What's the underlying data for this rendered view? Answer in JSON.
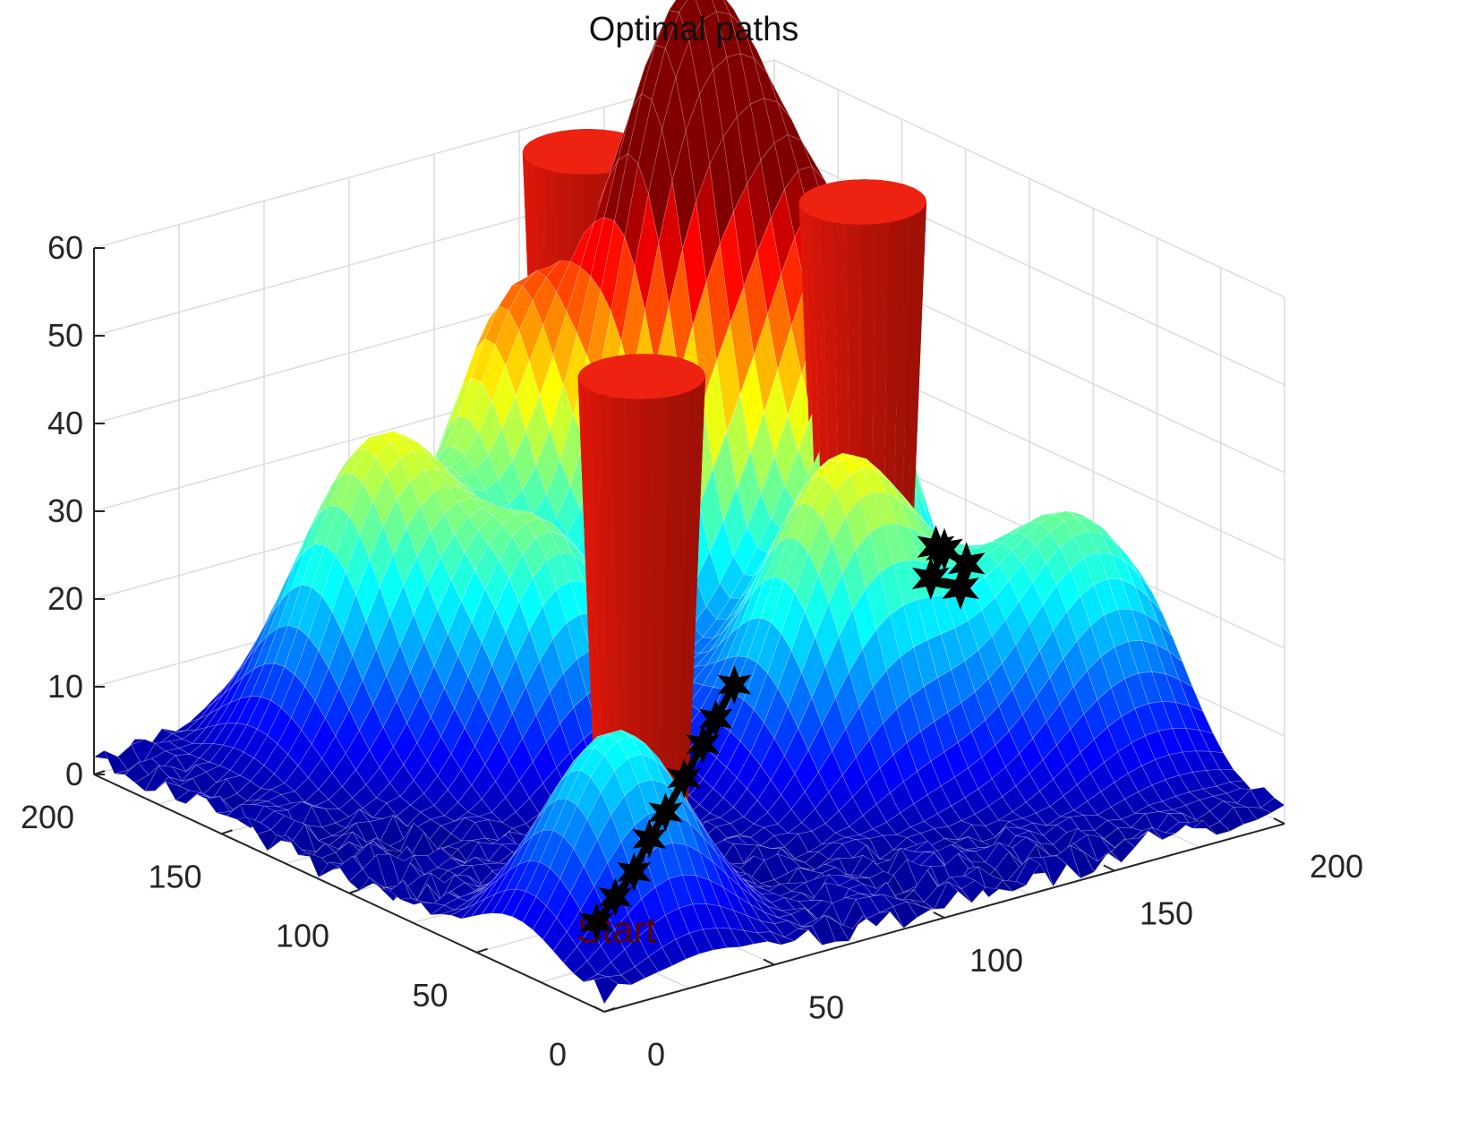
{
  "chart_data": {
    "type": "surface",
    "title": "Optimal paths",
    "xlim": [
      0,
      200
    ],
    "ylim": [
      0,
      200
    ],
    "zlim": [
      0,
      60
    ],
    "xticks": [
      "0",
      "50",
      "100",
      "150",
      "200"
    ],
    "yticks": [
      "0",
      "50",
      "100",
      "150",
      "200"
    ],
    "zticks": [
      "0",
      "10",
      "20",
      "30",
      "40",
      "50",
      "60"
    ],
    "colormap": "jet",
    "grid": true,
    "peaks": [
      {
        "x": 155,
        "y": 160,
        "h": 58,
        "s": 20
      },
      {
        "x": 130,
        "y": 150,
        "h": 44,
        "s": 16
      },
      {
        "x": 108,
        "y": 181,
        "h": 40,
        "s": 16
      },
      {
        "x": 60,
        "y": 169,
        "h": 35,
        "s": 20
      },
      {
        "x": 164,
        "y": 125,
        "h": 40,
        "s": 16
      },
      {
        "x": 133,
        "y": 85,
        "h": 36,
        "s": 20
      },
      {
        "x": 184,
        "y": 62,
        "h": 28,
        "s": 22
      },
      {
        "x": 80,
        "y": 129,
        "h": 26,
        "s": 18
      },
      {
        "x": 30,
        "y": 35,
        "h": 24,
        "s": 18
      }
    ],
    "obstacles": [
      {
        "x": 129,
        "y": 179,
        "r_bottom": 10,
        "r_top": 15,
        "z_bottom": 0,
        "z_top": 60
      },
      {
        "x": 160,
        "y": 112,
        "r_bottom": 10,
        "r_top": 15,
        "z_bottom": 0,
        "z_top": 60
      },
      {
        "x": 50,
        "y": 52,
        "r_bottom": 10,
        "r_top": 15,
        "z_bottom": 0,
        "z_top": 60
      }
    ],
    "path": [
      {
        "x": 27,
        "y": 39,
        "z": 2
      },
      {
        "x": 37,
        "y": 45,
        "z": 3
      },
      {
        "x": 47,
        "y": 51,
        "z": 4
      },
      {
        "x": 56,
        "y": 57,
        "z": 6
      },
      {
        "x": 66,
        "y": 64,
        "z": 7
      },
      {
        "x": 76,
        "y": 70,
        "z": 9
      },
      {
        "x": 86,
        "y": 76,
        "z": 11
      },
      {
        "x": 95,
        "y": 83,
        "z": 12
      },
      {
        "x": 105,
        "y": 89,
        "z": 14
      }
    ],
    "path_goal_markers": [
      {
        "x": 162,
        "y": 86,
        "z": 24
      },
      {
        "x": 168,
        "y": 82,
        "z": 22
      },
      {
        "x": 164,
        "y": 79,
        "z": 20
      },
      {
        "x": 159,
        "y": 84,
        "z": 21
      },
      {
        "x": 166,
        "y": 88,
        "z": 23
      }
    ],
    "path_label": "Start"
  },
  "colors": {
    "path": "#000000",
    "obstacle": "#e3170a",
    "label": "#5a0000",
    "grid": "#dcdcdc",
    "axis": "#262626"
  }
}
